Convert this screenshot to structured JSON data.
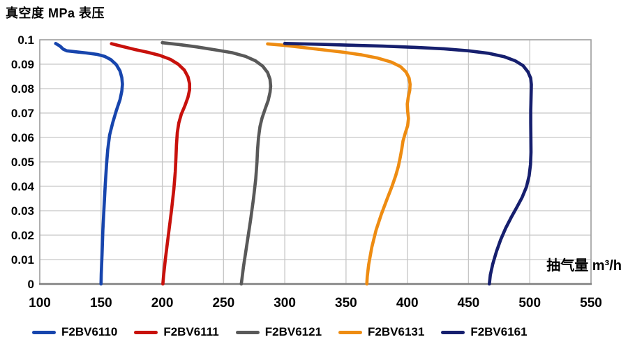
{
  "title": "真空度 MPa 表压",
  "chart_data": {
    "type": "line",
    "title": "真空度 MPa 表压",
    "xlabel": "抽气量 m³/h",
    "ylabel": "真空度 MPa 表压",
    "xlim": [
      100,
      550
    ],
    "ylim": [
      0,
      0.1
    ],
    "x_ticks": [
      100,
      150,
      200,
      250,
      300,
      350,
      400,
      450,
      500,
      550
    ],
    "y_ticks": [
      0,
      0.01,
      0.02,
      0.03,
      0.04,
      0.05,
      0.06,
      0.07,
      0.08,
      0.09,
      0.1
    ],
    "y_tick_labels": [
      "0",
      "0.01",
      "0.02",
      "0.03",
      "0.04",
      "0.05",
      "0.06",
      "0.07",
      "0.08",
      "0.09",
      "0.1"
    ],
    "grid": true,
    "legend_position": "bottom",
    "series": [
      {
        "name": "F2BV6110",
        "color": "#1745AD",
        "points": [
          [
            113,
            0.0985
          ],
          [
            116.5,
            0.0974
          ],
          [
            119,
            0.0962
          ],
          [
            122,
            0.0955
          ],
          [
            129,
            0.0951
          ],
          [
            138,
            0.0946
          ],
          [
            147,
            0.094
          ],
          [
            153,
            0.0932
          ],
          [
            158,
            0.0919
          ],
          [
            162.5,
            0.0898
          ],
          [
            165.5,
            0.0872
          ],
          [
            167,
            0.0845
          ],
          [
            167.5,
            0.0818
          ],
          [
            167,
            0.079
          ],
          [
            165.5,
            0.0755
          ],
          [
            162.5,
            0.071
          ],
          [
            159.5,
            0.066
          ],
          [
            157,
            0.061
          ],
          [
            155.5,
            0.055
          ],
          [
            154.5,
            0.049
          ],
          [
            153.5,
            0.041
          ],
          [
            152.5,
            0.032
          ],
          [
            151.5,
            0.022
          ],
          [
            150.8,
            0.012
          ],
          [
            150.2,
            0.004
          ],
          [
            150,
            0
          ]
        ]
      },
      {
        "name": "F2BV6111",
        "color": "#C8110C",
        "points": [
          [
            158.5,
            0.0984
          ],
          [
            167,
            0.0973
          ],
          [
            177,
            0.0961
          ],
          [
            188,
            0.0949
          ],
          [
            198,
            0.0936
          ],
          [
            206.5,
            0.092
          ],
          [
            213,
            0.09
          ],
          [
            218,
            0.0876
          ],
          [
            221,
            0.0848
          ],
          [
            222.3,
            0.082
          ],
          [
            222.3,
            0.0795
          ],
          [
            221,
            0.0765
          ],
          [
            218.5,
            0.073
          ],
          [
            215.5,
            0.0695
          ],
          [
            213.5,
            0.066
          ],
          [
            212.3,
            0.062
          ],
          [
            211.6,
            0.057
          ],
          [
            211.2,
            0.052
          ],
          [
            210.6,
            0.046
          ],
          [
            209.5,
            0.039
          ],
          [
            207.5,
            0.03
          ],
          [
            205,
            0.02
          ],
          [
            202.5,
            0.01
          ],
          [
            201,
            0.003
          ],
          [
            200.5,
            0
          ]
        ]
      },
      {
        "name": "F2BV6121",
        "color": "#595959",
        "points": [
          [
            200,
            0.0988
          ],
          [
            213,
            0.0981
          ],
          [
            228,
            0.0971
          ],
          [
            243,
            0.0959
          ],
          [
            257,
            0.0947
          ],
          [
            268,
            0.0932
          ],
          [
            276,
            0.0914
          ],
          [
            282,
            0.0892
          ],
          [
            286,
            0.0866
          ],
          [
            288,
            0.0838
          ],
          [
            288.5,
            0.081
          ],
          [
            288,
            0.0785
          ],
          [
            286.5,
            0.0752
          ],
          [
            284,
            0.0717
          ],
          [
            281.5,
            0.068
          ],
          [
            279.8,
            0.0645
          ],
          [
            278.6,
            0.06
          ],
          [
            277.8,
            0.055
          ],
          [
            277.3,
            0.05
          ],
          [
            276.3,
            0.043
          ],
          [
            274.5,
            0.035
          ],
          [
            272,
            0.026
          ],
          [
            269,
            0.016
          ],
          [
            266.3,
            0.007
          ],
          [
            265,
            0.002
          ],
          [
            264.5,
            0
          ]
        ]
      },
      {
        "name": "F2BV6131",
        "color": "#EE8C12",
        "points": [
          [
            286,
            0.0983
          ],
          [
            298,
            0.0978
          ],
          [
            314,
            0.0969
          ],
          [
            331,
            0.0959
          ],
          [
            348,
            0.0949
          ],
          [
            363,
            0.0938
          ],
          [
            376,
            0.0925
          ],
          [
            387,
            0.0909
          ],
          [
            394.5,
            0.089
          ],
          [
            399,
            0.0868
          ],
          [
            401.5,
            0.0843
          ],
          [
            402.3,
            0.0818
          ],
          [
            402,
            0.0793
          ],
          [
            400.8,
            0.0765
          ],
          [
            400,
            0.0737
          ],
          [
            400.3,
            0.0708
          ],
          [
            401,
            0.0678
          ],
          [
            400.3,
            0.0648
          ],
          [
            398.3,
            0.0617
          ],
          [
            396.5,
            0.0585
          ],
          [
            395.5,
            0.0553
          ],
          [
            394.3,
            0.052
          ],
          [
            392.8,
            0.0483
          ],
          [
            390.5,
            0.0443
          ],
          [
            387.3,
            0.0397
          ],
          [
            383.3,
            0.0345
          ],
          [
            378.8,
            0.0285
          ],
          [
            374.5,
            0.022
          ],
          [
            371,
            0.015
          ],
          [
            368.5,
            0.008
          ],
          [
            367.3,
            0.003
          ],
          [
            367,
            0
          ]
        ]
      },
      {
        "name": "F2BV6161",
        "color": "#161F6E",
        "points": [
          [
            300,
            0.0985
          ],
          [
            325,
            0.0982
          ],
          [
            352,
            0.0978
          ],
          [
            380,
            0.0974
          ],
          [
            407,
            0.0969
          ],
          [
            430,
            0.0963
          ],
          [
            450,
            0.0955
          ],
          [
            466,
            0.0945
          ],
          [
            479,
            0.0931
          ],
          [
            488,
            0.0914
          ],
          [
            494.5,
            0.0894
          ],
          [
            498.5,
            0.0869
          ],
          [
            500.7,
            0.0843
          ],
          [
            501.3,
            0.0817
          ],
          [
            501.2,
            0.079
          ],
          [
            501,
            0.0755
          ],
          [
            500.8,
            0.071
          ],
          [
            500.8,
            0.066
          ],
          [
            500.9,
            0.06
          ],
          [
            501,
            0.054
          ],
          [
            500.6,
            0.049
          ],
          [
            499.5,
            0.0443
          ],
          [
            497.3,
            0.0398
          ],
          [
            493.8,
            0.0355
          ],
          [
            489.5,
            0.0315
          ],
          [
            484.8,
            0.0272
          ],
          [
            480.3,
            0.0228
          ],
          [
            476.3,
            0.0182
          ],
          [
            472.8,
            0.0133
          ],
          [
            469.8,
            0.0082
          ],
          [
            467.8,
            0.0037
          ],
          [
            467,
            0
          ]
        ]
      }
    ]
  },
  "colors": {
    "grid": "#C6C6C6",
    "border": "#A0A0A0",
    "axis": "#7F7F7F",
    "text": "#000000",
    "background": "#FFFFFF"
  }
}
